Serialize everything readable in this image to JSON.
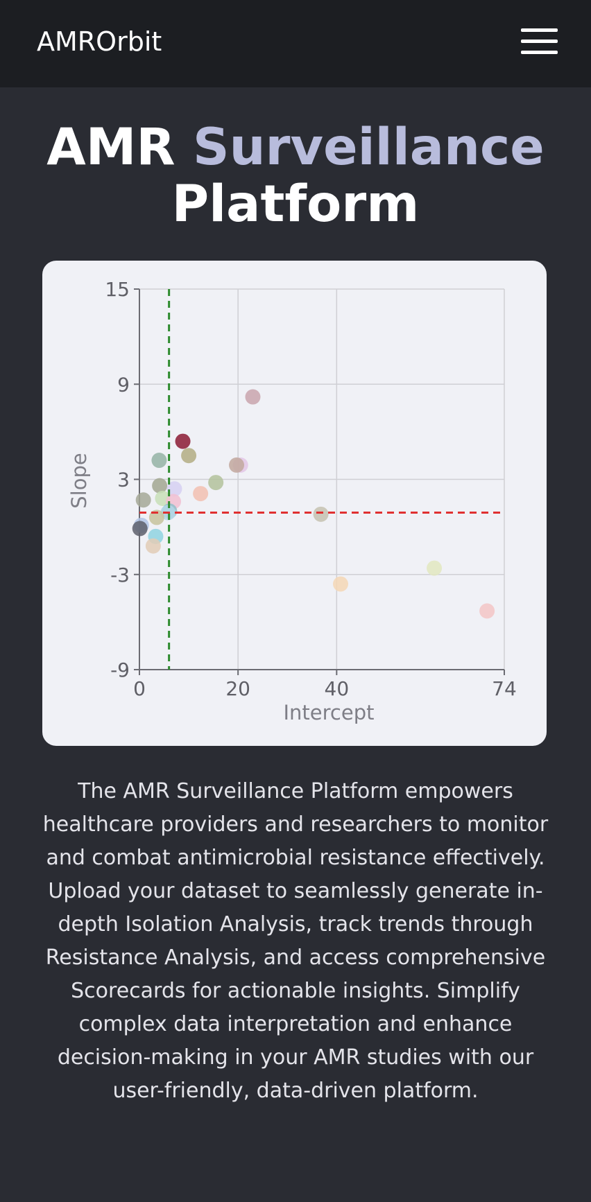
{
  "navbar": {
    "brand": "AMROrbit",
    "menu_icon": "hamburger-menu-icon"
  },
  "hero": {
    "title_part1": "AMR",
    "title_accent": "Surveillance",
    "title_part2": "Platform",
    "accent_color": "#b8bcdc"
  },
  "chart_data": {
    "type": "scatter",
    "xlabel": "Intercept",
    "ylabel": "Slope",
    "xlim": [
      0,
      74
    ],
    "ylim": [
      -9,
      15
    ],
    "x_ticks": [
      0,
      20,
      40,
      74
    ],
    "y_ticks": [
      15,
      9,
      3,
      -3,
      -9
    ],
    "grid": true,
    "legend": "none",
    "reference_lines": [
      {
        "orientation": "vertical",
        "value": 6,
        "color": "#2e8b2e",
        "style": "dashed"
      },
      {
        "orientation": "horizontal",
        "value": 0.9,
        "color": "#e03030",
        "style": "dashed"
      }
    ],
    "points": [
      {
        "x": 23,
        "y": 8.2,
        "color": "#c9a4ad"
      },
      {
        "x": 8.8,
        "y": 5.4,
        "color": "#8b1a33"
      },
      {
        "x": 10,
        "y": 4.5,
        "color": "#b3ad82"
      },
      {
        "x": 4,
        "y": 4.2,
        "color": "#94b3a4"
      },
      {
        "x": 20.5,
        "y": 3.9,
        "color": "#e3c7e6"
      },
      {
        "x": 19.7,
        "y": 3.9,
        "color": "#c2a89e"
      },
      {
        "x": 15.5,
        "y": 2.8,
        "color": "#b3c29b"
      },
      {
        "x": 12.4,
        "y": 2.1,
        "color": "#f2bfb0"
      },
      {
        "x": 4.1,
        "y": 2.6,
        "color": "#a2a791"
      },
      {
        "x": 7.1,
        "y": 2.4,
        "color": "#d6d0f2"
      },
      {
        "x": 4.7,
        "y": 1.8,
        "color": "#c8dfb7"
      },
      {
        "x": 6.9,
        "y": 1.6,
        "color": "#f1bfd1"
      },
      {
        "x": 0.8,
        "y": 1.7,
        "color": "#a4a896"
      },
      {
        "x": 6.1,
        "y": 1.0,
        "color": "#8fbfca"
      },
      {
        "x": 5.8,
        "y": 0.9,
        "color": "#b4d7e8"
      },
      {
        "x": 3.5,
        "y": 0.6,
        "color": "#c7c39c"
      },
      {
        "x": 36.8,
        "y": 0.8,
        "color": "#c6c2b0"
      },
      {
        "x": 0.4,
        "y": 0.1,
        "color": "#b1c5e6"
      },
      {
        "x": 0.1,
        "y": -0.1,
        "color": "#5d5f6b"
      },
      {
        "x": 3.3,
        "y": -0.6,
        "color": "#8fd3e0"
      },
      {
        "x": 2.8,
        "y": -1.2,
        "color": "#e2ccb6"
      },
      {
        "x": 59.8,
        "y": -2.6,
        "color": "#e2e8bf"
      },
      {
        "x": 40.8,
        "y": -3.6,
        "color": "#f5d7b5"
      },
      {
        "x": 70.5,
        "y": -5.3,
        "color": "#f3c5c5"
      }
    ]
  },
  "description": "The AMR Surveillance Platform empowers healthcare providers and researchers to monitor and combat antimicrobial resistance effectively. Upload your dataset to seamlessly generate in-depth Isolation Analysis, track trends through Resistance Analysis, and access comprehensive Scorecards for actionable insights. Simplify complex data interpretation and enhance decision-making in your AMR studies with our user-friendly, data-driven platform."
}
